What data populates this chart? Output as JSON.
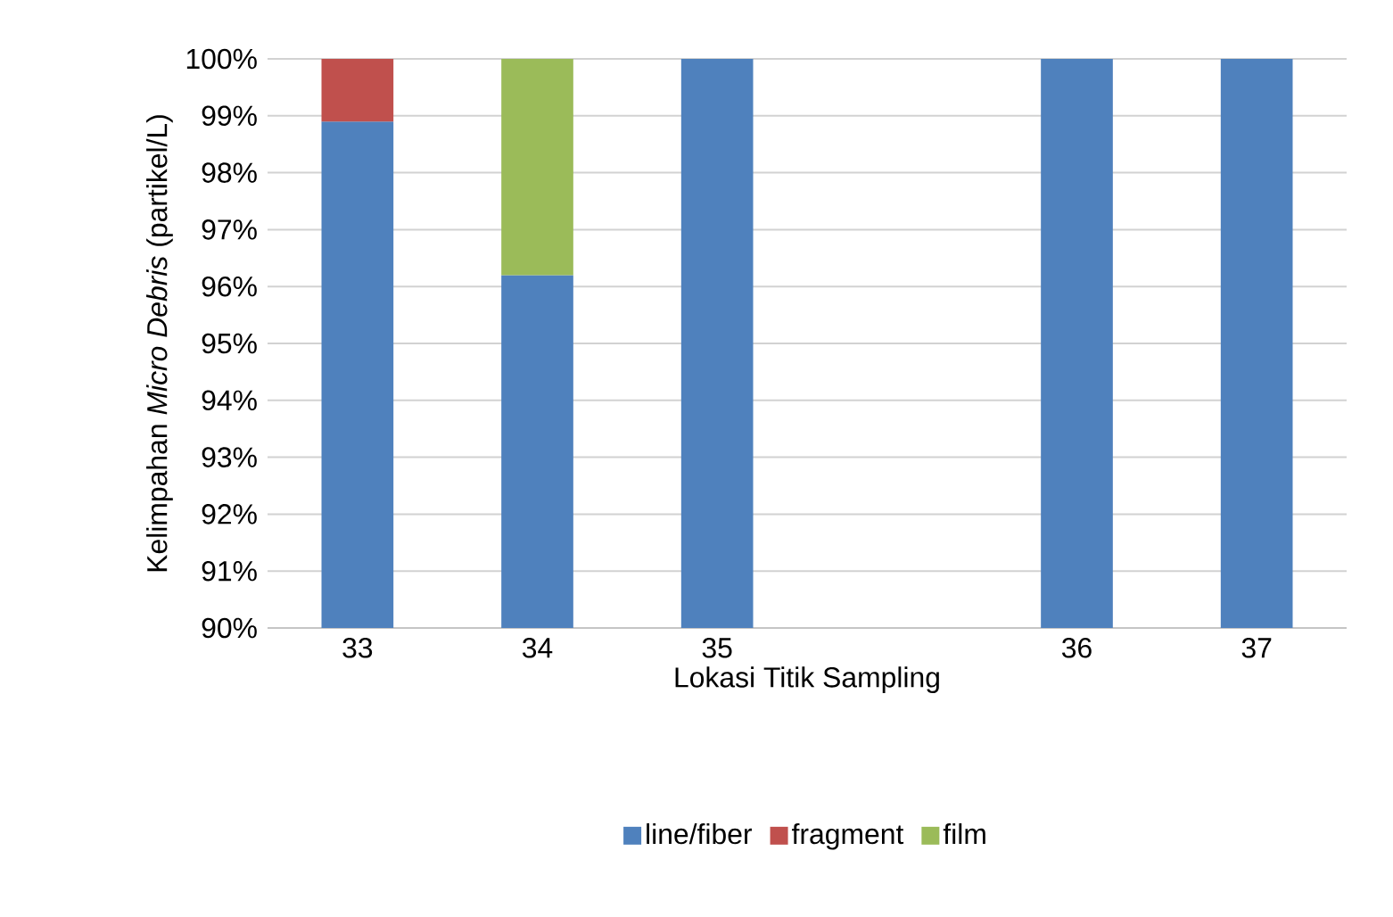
{
  "chart_data": {
    "type": "bar",
    "xlabel": "Lokasi Titik Sampling",
    "ylabel": "Kelimpahan *Micro Debris* (partikel/L)",
    "categories": [
      "33",
      "34",
      "35",
      null,
      "36",
      "37"
    ],
    "series": [
      {
        "name": "line/fiber",
        "color": "#4f81bd",
        "values": [
          98.9,
          96.2,
          100,
          null,
          100,
          100
        ]
      },
      {
        "name": "fragment",
        "color": "#c0504d",
        "values": [
          1.1,
          null,
          null,
          null,
          null,
          null
        ],
        "base": [
          98.9,
          null,
          null,
          null,
          null,
          null
        ]
      },
      {
        "name": "film",
        "color": "#9bbb59",
        "values": [
          null,
          3.8,
          null,
          null,
          null,
          null
        ],
        "base": [
          null,
          96.2,
          null,
          null,
          null,
          null
        ]
      }
    ],
    "ylim": [
      90,
      100
    ],
    "yticks": [
      {
        "value": 90,
        "label": "90%"
      },
      {
        "value": 91,
        "label": "91%"
      },
      {
        "value": 92,
        "label": "92%"
      },
      {
        "value": 93,
        "label": "93%"
      },
      {
        "value": 94,
        "label": "94%"
      },
      {
        "value": 95,
        "label": "95%"
      },
      {
        "value": 96,
        "label": "96%"
      },
      {
        "value": 97,
        "label": "97%"
      },
      {
        "value": 98,
        "label": "98%"
      },
      {
        "value": 99,
        "label": "99%"
      },
      {
        "value": 100,
        "label": "100%"
      }
    ],
    "grid": "y",
    "legend": "bottom"
  }
}
